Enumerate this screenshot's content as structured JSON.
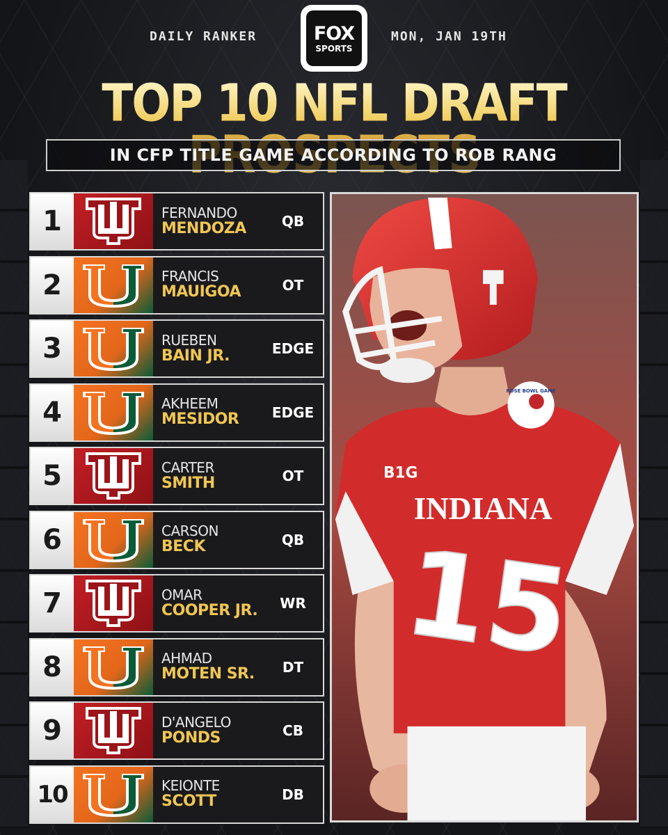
{
  "header": {
    "left": "DAILY RANKER",
    "right": "MON, JAN 19TH",
    "logo_top": "FOX",
    "logo_bottom": "SPORTS"
  },
  "title": "TOP 10 NFL DRAFT PROSPECTS",
  "subtitle": "IN CFP TITLE GAME ACCORDING TO ROB RANG",
  "colors": {
    "gold": "#f0c652",
    "indiana_red": "#c21f24",
    "miami_orange": "#f47321",
    "miami_green": "#0b5b38"
  },
  "prospects": [
    {
      "rank": "1",
      "first": "FERNANDO",
      "last": "MENDOZA",
      "pos": "QB",
      "team_logo": "indiana-logo-icon"
    },
    {
      "rank": "2",
      "first": "FRANCIS",
      "last": "MAUIGOA",
      "pos": "OT",
      "team_logo": "miami-logo-icon"
    },
    {
      "rank": "3",
      "first": "RUEBEN",
      "last": "BAIN JR.",
      "pos": "EDGE",
      "team_logo": "miami-logo-icon"
    },
    {
      "rank": "4",
      "first": "AKHEEM",
      "last": "MESIDOR",
      "pos": "EDGE",
      "team_logo": "miami-logo-icon"
    },
    {
      "rank": "5",
      "first": "CARTER",
      "last": "SMITH",
      "pos": "OT",
      "team_logo": "indiana-logo-icon"
    },
    {
      "rank": "6",
      "first": "CARSON",
      "last": "BECK",
      "pos": "QB",
      "team_logo": "miami-logo-icon"
    },
    {
      "rank": "7",
      "first": "OMAR",
      "last": "COOPER JR.",
      "pos": "WR",
      "team_logo": "indiana-logo-icon"
    },
    {
      "rank": "8",
      "first": "AHMAD",
      "last": "MOTEN SR.",
      "pos": "DT",
      "team_logo": "miami-logo-icon"
    },
    {
      "rank": "9",
      "first": "D'ANGELO",
      "last": "PONDS",
      "pos": "CB",
      "team_logo": "indiana-logo-icon"
    },
    {
      "rank": "10",
      "first": "KEIONTE",
      "last": "SCOTT",
      "pos": "DB",
      "team_logo": "miami-logo-icon"
    }
  ],
  "photo": {
    "jersey_text": "INDIANA",
    "jersey_number": "15",
    "conference_patch": "B1G",
    "bowl_patch": "ROSE BOWL GAME"
  }
}
